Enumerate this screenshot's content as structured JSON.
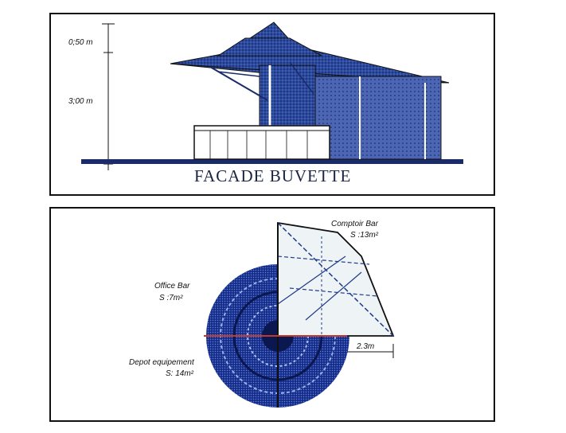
{
  "facade": {
    "title": "FACADE BUVETTE",
    "dim_top": "0;50 m",
    "dim_height": "3;00 m"
  },
  "plan": {
    "comptoir_name": "Comptoir Bar",
    "comptoir_area": "S :13m²",
    "office_name": "Office Bar",
    "office_area": "S :7m²",
    "depot_name": "Depot equipement",
    "depot_area": "S: 14m²",
    "dim_width": "2.3m"
  },
  "colors": {
    "ink": "#1f3a8a",
    "ink_dark": "#13245e",
    "line": "#111111",
    "accent_red": "#c0392b"
  }
}
